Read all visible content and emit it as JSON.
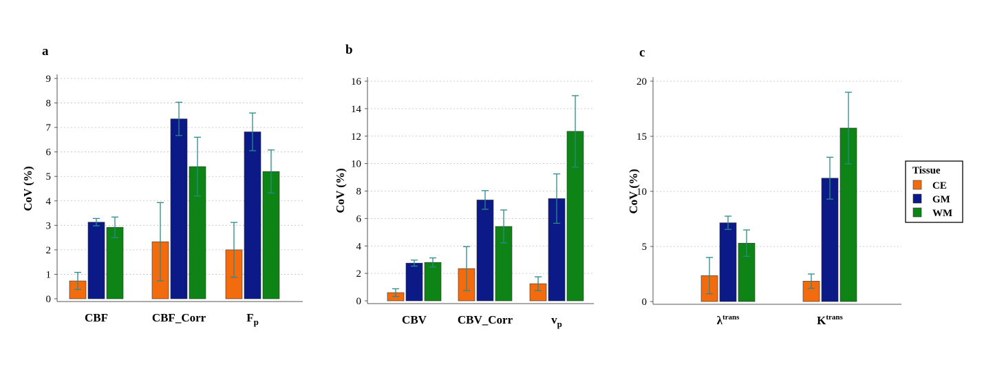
{
  "colors": {
    "CE": "#f26b0f",
    "GM": "#0b1a86",
    "WM": "#0d8415",
    "error": "#2a8a8a",
    "grid": "#bfbfbf"
  },
  "legend": {
    "title": "Tissue",
    "entries": [
      "CE",
      "GM",
      "WM"
    ]
  },
  "chart_data": [
    {
      "type": "bar",
      "panel": "a",
      "ylabel": "CoV (%)",
      "ylim": [
        0,
        9
      ],
      "yticks": [
        0,
        1,
        2,
        3,
        4,
        5,
        6,
        7,
        8,
        9
      ],
      "categories": [
        {
          "base": "CBF",
          "sub": "",
          "sup": ""
        },
        {
          "base": "CBF_Corr",
          "sub": "",
          "sup": ""
        },
        {
          "base": "F",
          "sub": "p",
          "sup": ""
        }
      ],
      "series": [
        {
          "name": "CE",
          "values": [
            0.73,
            2.33,
            2.0
          ],
          "errors": [
            0.35,
            1.6,
            1.12
          ]
        },
        {
          "name": "GM",
          "values": [
            3.13,
            7.35,
            6.82
          ],
          "errors": [
            0.15,
            0.68,
            0.77
          ]
        },
        {
          "name": "WM",
          "values": [
            2.92,
            5.4,
            5.2
          ],
          "errors": [
            0.42,
            1.2,
            0.88
          ]
        }
      ]
    },
    {
      "type": "bar",
      "panel": "b",
      "ylabel": "CoV (%)",
      "ylim": [
        0,
        16
      ],
      "yticks": [
        0,
        2,
        4,
        6,
        8,
        10,
        12,
        14,
        16
      ],
      "categories": [
        {
          "base": "CBV",
          "sub": "",
          "sup": ""
        },
        {
          "base": "CBV_Corr",
          "sub": "",
          "sup": ""
        },
        {
          "base": "v",
          "sub": "p",
          "sup": ""
        }
      ],
      "series": [
        {
          "name": "CE",
          "values": [
            0.6,
            2.35,
            1.25
          ],
          "errors": [
            0.28,
            1.6,
            0.5
          ]
        },
        {
          "name": "GM",
          "values": [
            2.75,
            7.35,
            7.45
          ],
          "errors": [
            0.22,
            0.68,
            1.8
          ]
        },
        {
          "name": "WM",
          "values": [
            2.8,
            5.42,
            12.35
          ],
          "errors": [
            0.33,
            1.2,
            2.6
          ]
        }
      ]
    },
    {
      "type": "bar",
      "panel": "c",
      "ylabel": "CoV (%)",
      "ylim": [
        0,
        20
      ],
      "yticks": [
        0,
        5,
        10,
        15,
        20
      ],
      "categories": [
        {
          "base": "λ",
          "sub": "",
          "sup": "trans"
        },
        {
          "base": "K",
          "sub": "",
          "sup": "trans"
        }
      ],
      "series": [
        {
          "name": "CE",
          "values": [
            2.35,
            1.85
          ],
          "errors": [
            1.65,
            0.65
          ]
        },
        {
          "name": "GM",
          "values": [
            7.15,
            11.2
          ],
          "errors": [
            0.6,
            1.9
          ]
        },
        {
          "name": "WM",
          "values": [
            5.3,
            15.75
          ],
          "errors": [
            1.2,
            3.25
          ]
        }
      ]
    }
  ]
}
